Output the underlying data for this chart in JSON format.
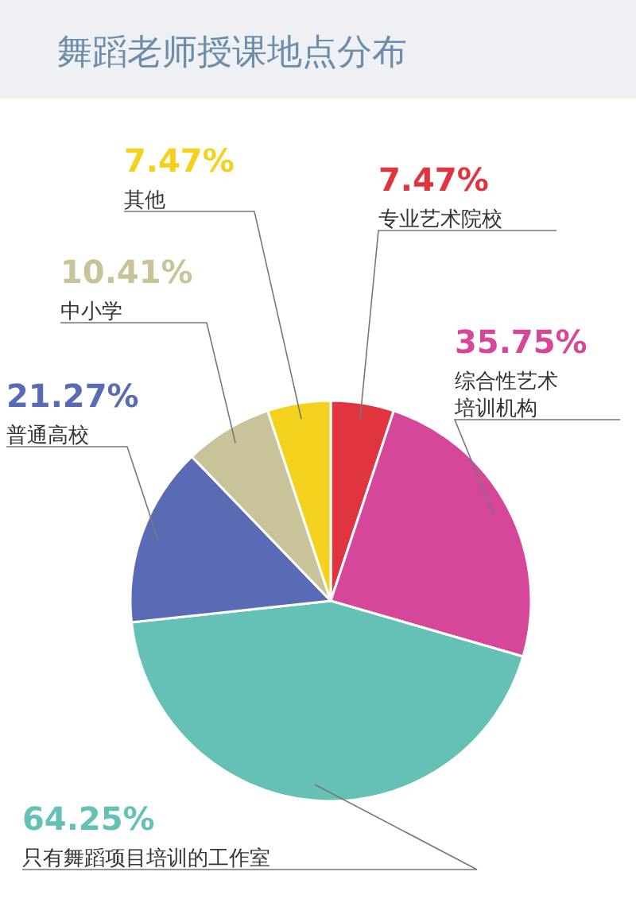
{
  "chart_data": {
    "type": "pie",
    "title": "舞蹈老师授课地点分布",
    "categories": [
      "专业艺术院校",
      "综合性艺术培训机构",
      "只有舞蹈项目培训的工作室",
      "普通高校",
      "中小学",
      "其他"
    ],
    "values": [
      7.47,
      35.75,
      64.25,
      21.27,
      10.41,
      7.47
    ],
    "colors": [
      "#e0343f",
      "#d6479a",
      "#65c1b5",
      "#5a6bb5",
      "#c9c39a",
      "#f4d11c"
    ],
    "value_labels": [
      "7.47%",
      "35.75%",
      "64.25%",
      "21.27%",
      "10.41%",
      "7.47%"
    ]
  }
}
